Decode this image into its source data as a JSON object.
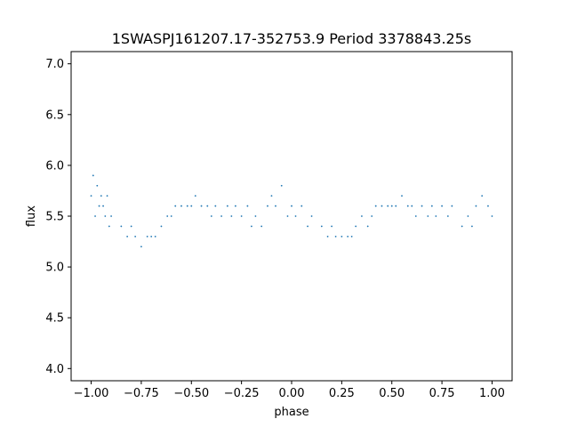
{
  "chart_data": {
    "type": "scatter",
    "title": "1SWASPJ161207.17-352753.9 Period 3378843.25s",
    "xlabel": "phase",
    "ylabel": "flux",
    "xlim": [
      -1.1,
      1.1
    ],
    "ylim": [
      3.88,
      7.12
    ],
    "grid": false,
    "point_color": "#1f77b4",
    "xticks": [
      -1.0,
      -0.75,
      -0.5,
      -0.25,
      0.0,
      0.25,
      0.5,
      0.75,
      1.0
    ],
    "xtick_labels": [
      "−1.00",
      "−0.75",
      "−0.50",
      "−0.25",
      "0.00",
      "0.25",
      "0.50",
      "0.75",
      "1.00"
    ],
    "yticks": [
      4.0,
      4.5,
      5.0,
      5.5,
      6.0,
      6.5,
      7.0
    ],
    "ytick_labels": [
      "4.0",
      "4.5",
      "5.0",
      "5.5",
      "6.0",
      "6.5",
      "7.0"
    ],
    "series": [
      {
        "x": [
          -1.0,
          -0.99,
          -0.98,
          -0.97,
          -0.96,
          -0.95,
          -0.94,
          -0.93,
          -0.92,
          -0.91,
          -0.9,
          -0.85,
          -0.82,
          -0.8,
          -0.78,
          -0.75,
          -0.72,
          -0.7,
          -0.68,
          -0.65,
          -0.62,
          -0.6,
          -0.58,
          -0.55,
          -0.52,
          -0.5,
          -0.48,
          -0.45,
          -0.42,
          -0.4,
          -0.38,
          -0.35,
          -0.32,
          -0.3,
          -0.28,
          -0.25,
          -0.22,
          -0.2,
          -0.18,
          -0.15,
          -0.12,
          -0.1,
          -0.08,
          -0.05,
          -0.02,
          0.0,
          0.02,
          0.05,
          0.08,
          0.1,
          0.15,
          0.18,
          0.2,
          0.22,
          0.25,
          0.28,
          0.3,
          0.32,
          0.35,
          0.38,
          0.4,
          0.42,
          0.45,
          0.48,
          0.5,
          0.52,
          0.55,
          0.58,
          0.6,
          0.62,
          0.65,
          0.68,
          0.7,
          0.72,
          0.75,
          0.78,
          0.8,
          0.85,
          0.88,
          0.9,
          0.92,
          0.95,
          0.98,
          1.0
        ],
        "y": [
          5.7,
          5.9,
          5.5,
          5.8,
          5.6,
          5.7,
          5.6,
          5.5,
          5.7,
          5.4,
          5.5,
          5.4,
          5.3,
          5.4,
          5.3,
          5.2,
          5.3,
          5.3,
          5.3,
          5.4,
          5.5,
          5.5,
          5.6,
          5.6,
          5.6,
          5.6,
          5.7,
          5.6,
          5.6,
          5.5,
          5.6,
          5.5,
          5.6,
          5.5,
          5.6,
          5.5,
          5.6,
          5.4,
          5.5,
          5.4,
          5.6,
          5.7,
          5.6,
          5.8,
          5.5,
          5.6,
          5.5,
          5.6,
          5.4,
          5.5,
          5.4,
          5.3,
          5.4,
          5.3,
          5.3,
          5.3,
          5.3,
          5.4,
          5.5,
          5.4,
          5.5,
          5.6,
          5.6,
          5.6,
          5.6,
          5.6,
          5.7,
          5.6,
          5.6,
          5.5,
          5.6,
          5.5,
          5.6,
          5.5,
          5.6,
          5.5,
          5.6,
          5.4,
          5.5,
          5.4,
          5.6,
          5.7,
          5.6,
          5.5
        ]
      }
    ]
  }
}
